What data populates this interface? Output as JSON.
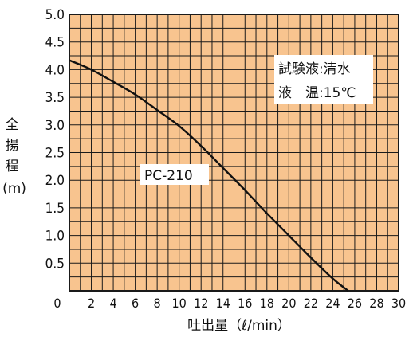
{
  "chart_data": {
    "type": "line",
    "xlabel": "吐出量（ℓ/min）",
    "ylabel_chars": [
      "全",
      "揚",
      "程"
    ],
    "ylabel_unit": "(m)",
    "xlim": [
      0,
      30
    ],
    "ylim": [
      0,
      5
    ],
    "x_ticks": [
      "0",
      "2",
      "4",
      "6",
      "8",
      "10",
      "12",
      "14",
      "16",
      "18",
      "20",
      "22",
      "24",
      "26",
      "28",
      "30"
    ],
    "y_ticks": [
      "5.0",
      "4.5",
      "4.0",
      "3.5",
      "3.0",
      "2.5",
      "2.0",
      "1.5",
      "1.0",
      "0.5"
    ],
    "grid": true,
    "plot_background": "#f8c48f",
    "grid_color": "#1a1a1a",
    "series": [
      {
        "name": "PC-210",
        "color": "#111111",
        "points": [
          [
            0,
            4.17
          ],
          [
            2,
            4.0
          ],
          [
            4,
            3.78
          ],
          [
            6,
            3.55
          ],
          [
            8,
            3.27
          ],
          [
            10,
            2.98
          ],
          [
            12,
            2.62
          ],
          [
            14,
            2.22
          ],
          [
            16,
            1.82
          ],
          [
            18,
            1.4
          ],
          [
            20,
            1.0
          ],
          [
            22,
            0.6
          ],
          [
            24,
            0.22
          ],
          [
            25.4,
            0.0
          ]
        ]
      }
    ],
    "annotations": [
      "試験液:清水",
      "液　温:15℃"
    ]
  }
}
